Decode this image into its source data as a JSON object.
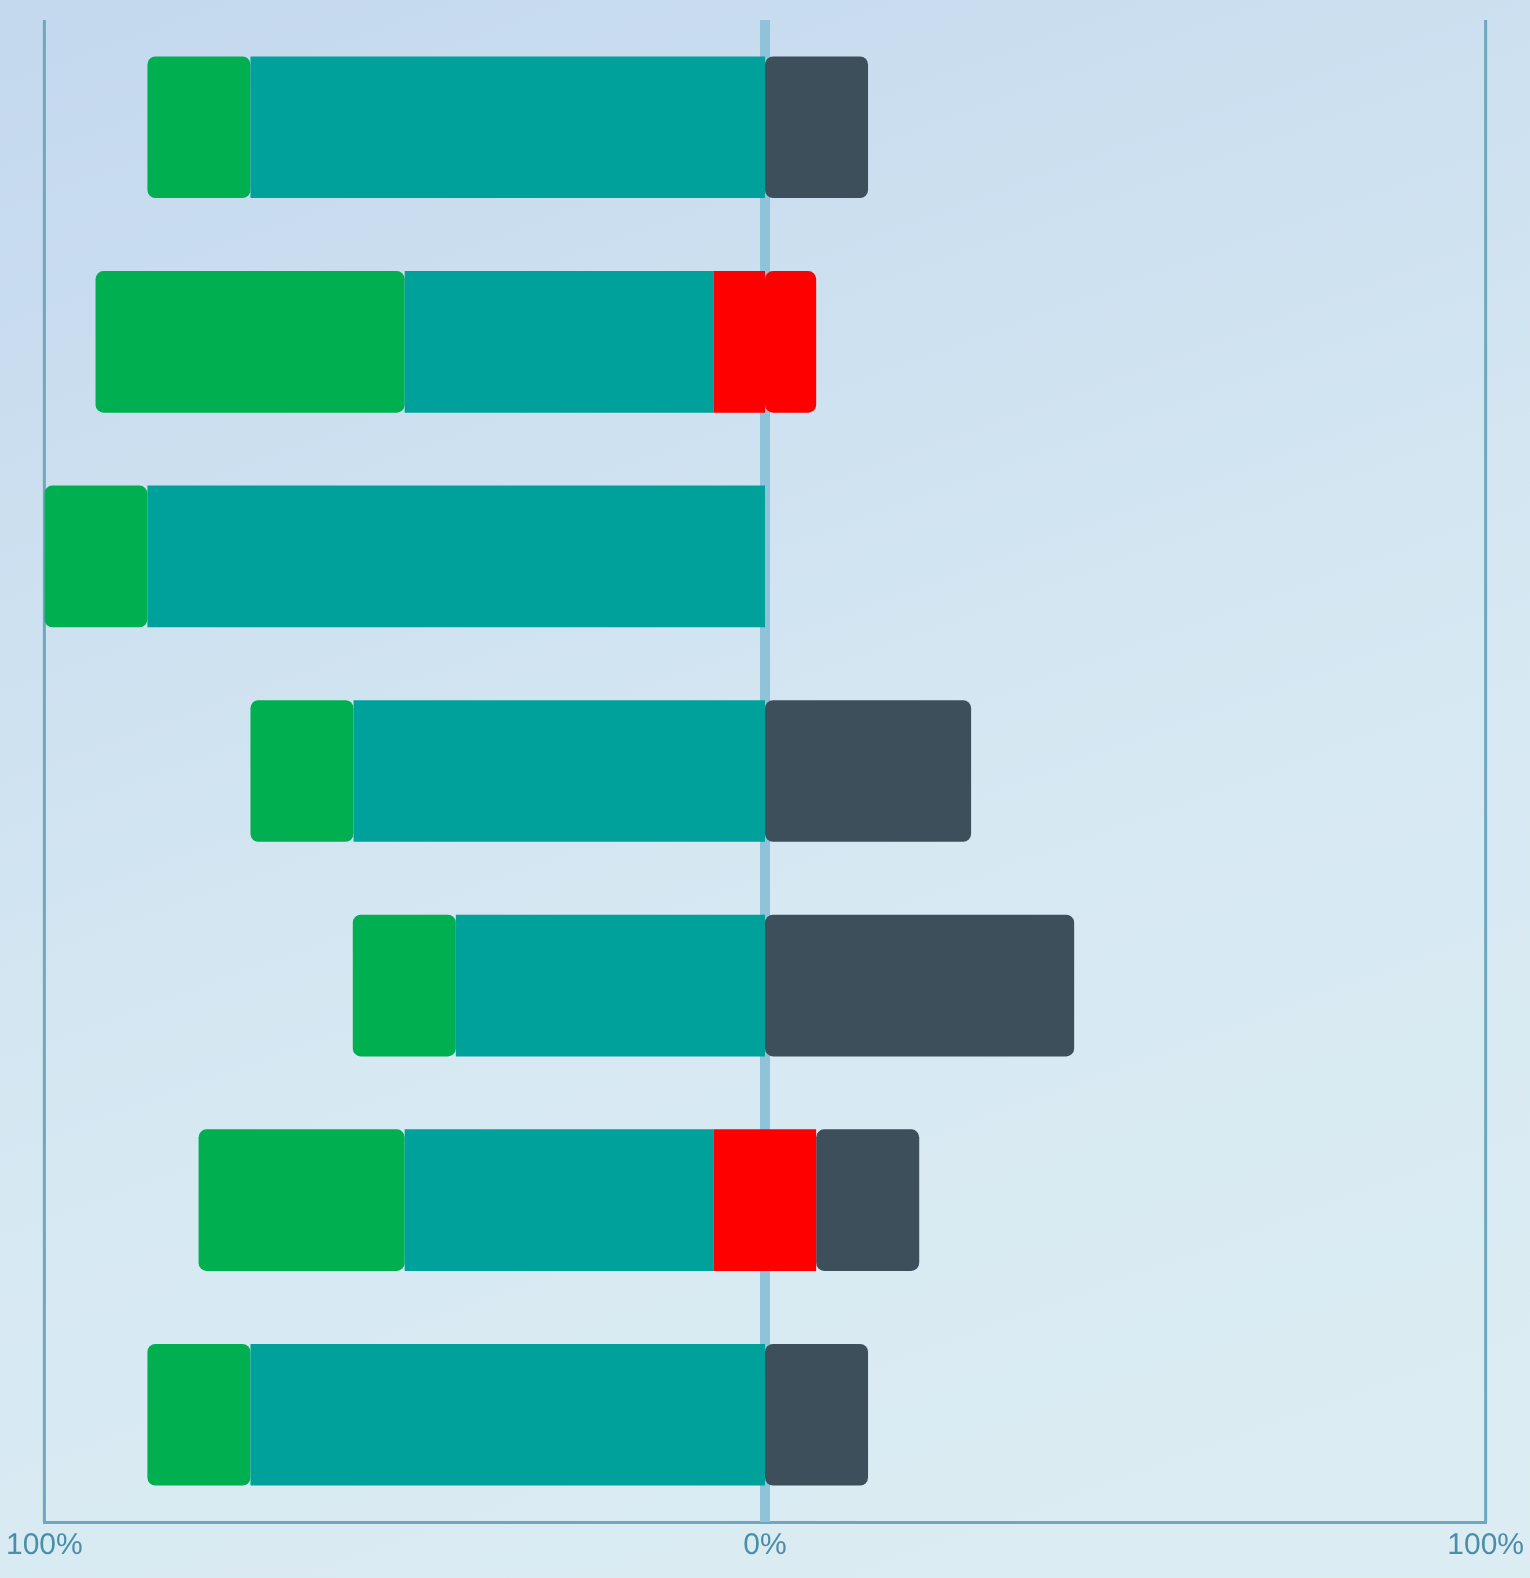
{
  "chart_data": {
    "type": "bar",
    "orientation": "horizontal",
    "stacked": true,
    "categories": [
      null,
      null,
      null,
      null,
      null,
      null,
      null
    ],
    "series": [
      {
        "color": "#ff0000",
        "values": [
          0,
          -7.1,
          0,
          0,
          0,
          -7.1,
          0
        ]
      },
      {
        "color": "#00a19a",
        "values": [
          -71.4,
          -42.9,
          -85.7,
          -57.1,
          -42.9,
          -42.9,
          -71.4
        ]
      },
      {
        "color": "#00b050",
        "values": [
          -14.3,
          -42.9,
          -14.3,
          -14.3,
          -14.3,
          -28.6,
          -14.3
        ]
      },
      {
        "color": "#ff0000",
        "values": [
          0,
          7.1,
          0,
          0,
          0,
          7.1,
          0
        ]
      },
      {
        "color": "#3e4f5c",
        "values": [
          14.3,
          0,
          0,
          28.6,
          42.9,
          14.3,
          14.3
        ]
      }
    ],
    "xlim": [
      -100,
      100
    ],
    "xticks": [
      {
        "value": -100,
        "label": "100%"
      },
      {
        "value": 0,
        "label": "0%"
      },
      {
        "value": 100,
        "label": "100%"
      }
    ],
    "ref_lines": [
      {
        "axis": "x",
        "value": 0,
        "color": "#8fc3d9"
      }
    ],
    "grid": false,
    "legend": false
  }
}
